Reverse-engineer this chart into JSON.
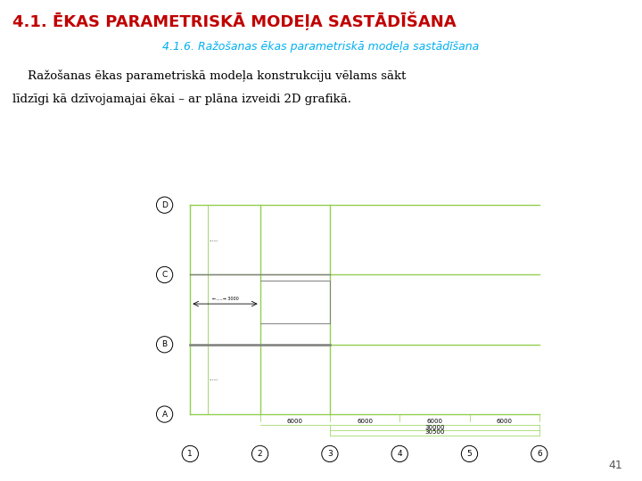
{
  "title": "4.1. ĒKAS PARAMETRISKĀ MODEļA SASTĀDĪŠANA",
  "subtitle": "4.1.6. Ražošanas ēkas parametriskā modeļa sastādīšana",
  "body_text_line1": "    Ražošanas ēkas parametriskā modeļa konstrukciju vēlams sākt",
  "body_text_line2": "līdzīgi kā dzīvojamajai ēkai – ar plāna izveidi 2D grafikā.",
  "page_num": "41",
  "bg_color": "#ffffff",
  "title_color": "#C00000",
  "subtitle_color": "#00B0F0",
  "text_color": "#000000",
  "plan_line_color": "#92D050",
  "plan_line_color2": "#808080",
  "plan_dim_color": "#000000",
  "row_labels": [
    "A",
    "B",
    "C",
    "D"
  ],
  "col_labels": [
    "1",
    "2",
    "3",
    "4",
    "5",
    "6"
  ],
  "dim_label_6000": "6000",
  "dim_total1": "30000",
  "dim_total2": "30500"
}
